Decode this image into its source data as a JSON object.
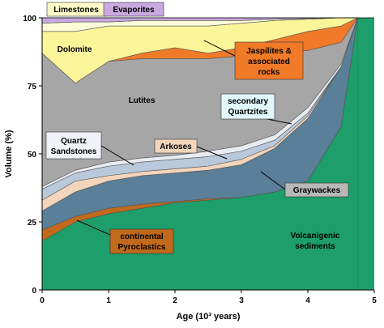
{
  "chart_data": {
    "type": "area",
    "title": "",
    "xlabel": "Age (10³ years)",
    "ylabel": "Volume (%)",
    "xlim": [
      0,
      5
    ],
    "ylim": [
      0,
      100
    ],
    "x_ticks": [
      "0",
      "1",
      "2",
      "3",
      "4",
      "5"
    ],
    "y_ticks": [
      "0",
      "25",
      "50",
      "75",
      "100"
    ],
    "x_reversed": false,
    "grid": false,
    "legend": "none",
    "stacking_order_bottom_to_top": [
      "Volcanigenic sediments",
      "continental Pyroclastics",
      "Graywackes",
      "Arkoses",
      "Quartz Sandstones",
      "secondary Quartzites",
      "Lutites",
      "Jaspilites & associated rocks",
      "Dolomite",
      "Limestones",
      "Evaporites"
    ],
    "x": [
      0,
      0.5,
      1,
      1.5,
      2,
      2.5,
      3,
      3.5,
      4,
      4.5,
      4.75
    ],
    "series": [
      {
        "name": "Volcanigenic sediments",
        "color": "#1e9e6a",
        "top": [
          18,
          25,
          28,
          30,
          32,
          33,
          34,
          36,
          40,
          60,
          100
        ]
      },
      {
        "name": "continental Pyroclastics",
        "color": "#c26a1c",
        "top": [
          22,
          27,
          30,
          31.5,
          32.5,
          33.5,
          34,
          36,
          40,
          60,
          100
        ]
      },
      {
        "name": "Graywackes",
        "color": "#5a7f98",
        "top": [
          29,
          36,
          40,
          42,
          43,
          44,
          46,
          52,
          63,
          82,
          100
        ]
      },
      {
        "name": "Arkoses",
        "color": "#f3d5bc",
        "top": [
          33,
          40,
          42,
          43.5,
          44.5,
          45.5,
          48,
          53,
          64,
          82,
          100
        ]
      },
      {
        "name": "Quartz Sandstones",
        "color": "#b9c8da",
        "top": [
          37,
          43,
          45.5,
          47,
          48,
          49,
          51,
          55,
          65,
          82,
          100
        ]
      },
      {
        "name": "secondary Quartzites",
        "color": "#e7ecf2",
        "top": [
          38,
          44,
          47,
          48.5,
          49.5,
          51,
          53,
          57,
          67,
          83,
          100
        ]
      },
      {
        "name": "Lutites",
        "color": "#a6a6a6",
        "top": [
          87,
          76,
          84,
          85,
          85,
          85,
          86,
          87,
          88,
          91,
          100
        ]
      },
      {
        "name": "Jaspilites & associated rocks",
        "color": "#f07a28",
        "top": [
          87,
          76,
          84,
          87,
          89,
          87,
          89,
          92,
          95,
          97,
          100
        ]
      },
      {
        "name": "Dolomite",
        "color": "#fbf59a",
        "top": [
          95,
          95,
          97,
          97,
          97,
          97,
          98,
          99,
          99.5,
          100,
          100
        ]
      },
      {
        "name": "Limestones",
        "color": "#fcfcd8",
        "top": [
          98,
          98.5,
          98.5,
          99,
          99,
          99,
          99,
          99.5,
          99.8,
          100,
          100
        ]
      },
      {
        "name": "Evaporites",
        "color": "#c9a9e0",
        "top": [
          100,
          100,
          100,
          100,
          100,
          100,
          100,
          100,
          100,
          100,
          100
        ]
      }
    ],
    "annotations": [
      {
        "text": "Limestones",
        "box_color": "#fffbc8"
      },
      {
        "text": "Evaporites",
        "box_color": "#c9a9e0"
      },
      {
        "text": "Dolomite",
        "box_color": "none"
      },
      {
        "text": "Jaspilites &",
        "text2": "associated",
        "text3": "rocks",
        "box_color": "#f07a28"
      },
      {
        "text": "Lutites",
        "box_color": "none"
      },
      {
        "text": "secondary",
        "text2": "Quartzites",
        "box_color": "#e1f7fb"
      },
      {
        "text": "Quartz",
        "text2": "Sandstones",
        "box_color": "#f0f2f8"
      },
      {
        "text": "Arkoses",
        "box_color": "#f3d5bc"
      },
      {
        "text": "Graywackes",
        "box_color": "#b8b8b8"
      },
      {
        "text": "continental",
        "text2": "Pyroclastics",
        "box_color": "#c26a1c"
      },
      {
        "text": "Volcanigenic",
        "text2": "sediments",
        "box_color": "none"
      }
    ]
  }
}
